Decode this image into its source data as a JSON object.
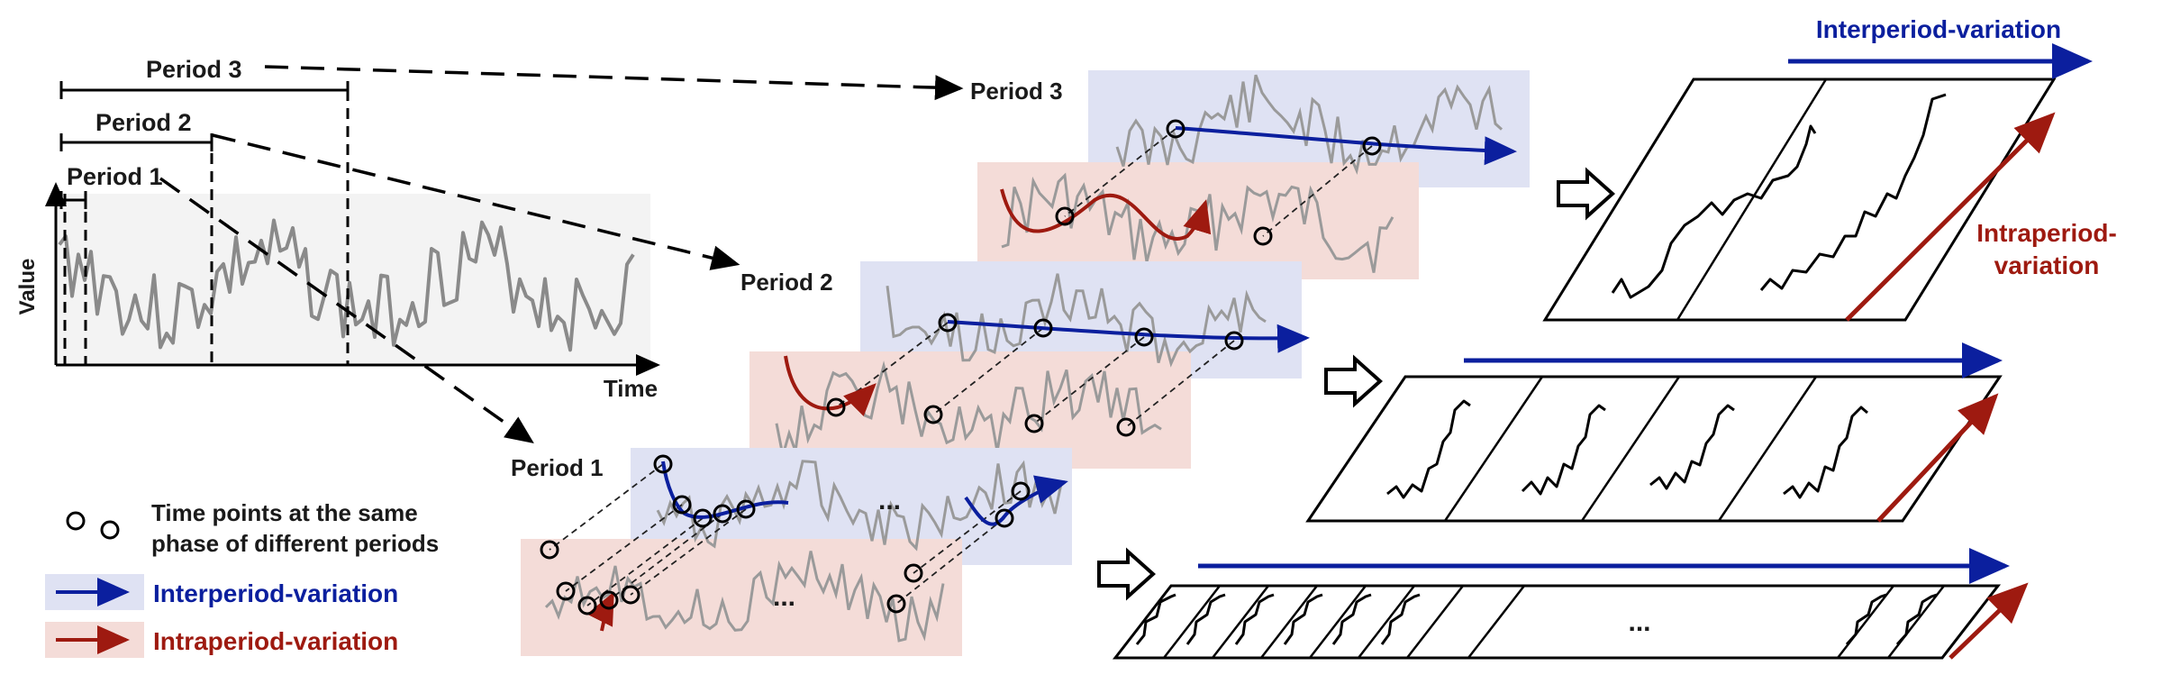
{
  "original_plot": {
    "y_axis_label": "Value",
    "x_axis_label": "Time",
    "period_labels": [
      "Period 1",
      "Period 2",
      "Period 3"
    ]
  },
  "stacks": {
    "period3_label": "Period 3",
    "period2_label": "Period 2",
    "period1_label": "Period 1",
    "ellipsis": "..."
  },
  "legend": {
    "circles_text_line1": "Time points at the same",
    "circles_text_line2": "phase of different periods",
    "interperiod_text": "Interperiod-variation",
    "intraperiod_text": "Intraperiod-variation"
  },
  "tensors": {
    "top_interperiod_label": "Interperiod-variation",
    "intraperiod_label_line1": "Intraperiod-",
    "intraperiod_label_line2": "variation",
    "bottom_ellipsis": "..."
  },
  "colors": {
    "blue": "#0b1f9e",
    "red": "#9e1a10",
    "blue_bg": "#dfe2f3",
    "red_bg": "#f4dcd8",
    "series_gray": "#8a8a8a"
  }
}
